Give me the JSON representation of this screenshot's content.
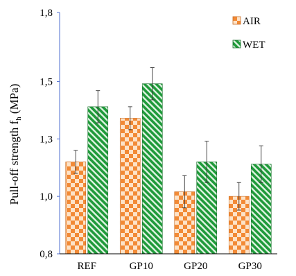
{
  "chart_data": {
    "type": "bar",
    "categories": [
      "REF",
      "GP10",
      "GP20",
      "GP30"
    ],
    "series": [
      {
        "name": "AIR",
        "values": [
          1.15,
          1.34,
          1.02,
          1.0
        ],
        "errors": [
          0.05,
          0.05,
          0.07,
          0.06
        ],
        "color": "#f28a36",
        "pattern": "checkerboard"
      },
      {
        "name": "WET",
        "values": [
          1.39,
          1.49,
          1.15,
          1.14
        ],
        "errors": [
          0.07,
          0.07,
          0.09,
          0.08
        ],
        "color": "#1f9a3a",
        "pattern": "diagonal-stripes"
      }
    ],
    "ylabel": "Pull-off strength f",
    "ylabel_subscript": "h",
    "ylabel_unit": " (MPa)",
    "ylim": [
      0.75,
      1.8
    ],
    "yticks": [
      0.75,
      1.0,
      1.25,
      1.5,
      1.8
    ],
    "ytick_labels": [
      "0,8",
      "1,0",
      "1,3",
      "1,5",
      "1,8"
    ],
    "grid": false,
    "legend_position": "top-right",
    "axis_color": "#4f6fd0"
  }
}
